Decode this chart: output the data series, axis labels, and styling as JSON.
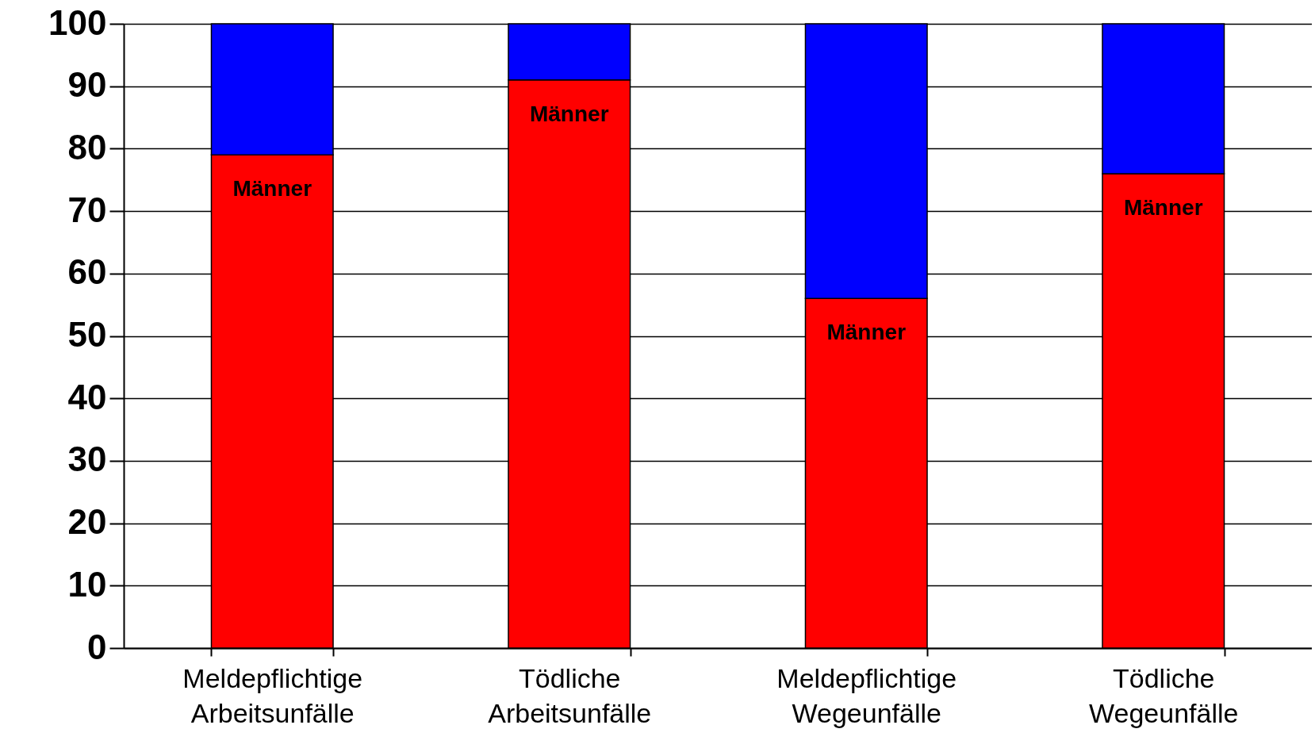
{
  "chart_data": {
    "type": "bar",
    "stacked": true,
    "categories": [
      "Meldepflichtige Arbeitsunfälle",
      "Tödliche Arbeitsunfälle",
      "Meldepflichtige Wegeunfälle",
      "Tödliche Wegeunfälle"
    ],
    "series": [
      {
        "name": "Männer",
        "color": "#ff0000",
        "values": [
          79,
          91,
          56,
          76
        ]
      },
      {
        "color": "#0000ff",
        "values": [
          21,
          9,
          44,
          24
        ]
      }
    ],
    "ylim": [
      0,
      100
    ],
    "yticks": [
      0,
      10,
      20,
      30,
      40,
      50,
      60,
      70,
      80,
      90,
      100
    ],
    "grid": "y",
    "legend": false
  }
}
